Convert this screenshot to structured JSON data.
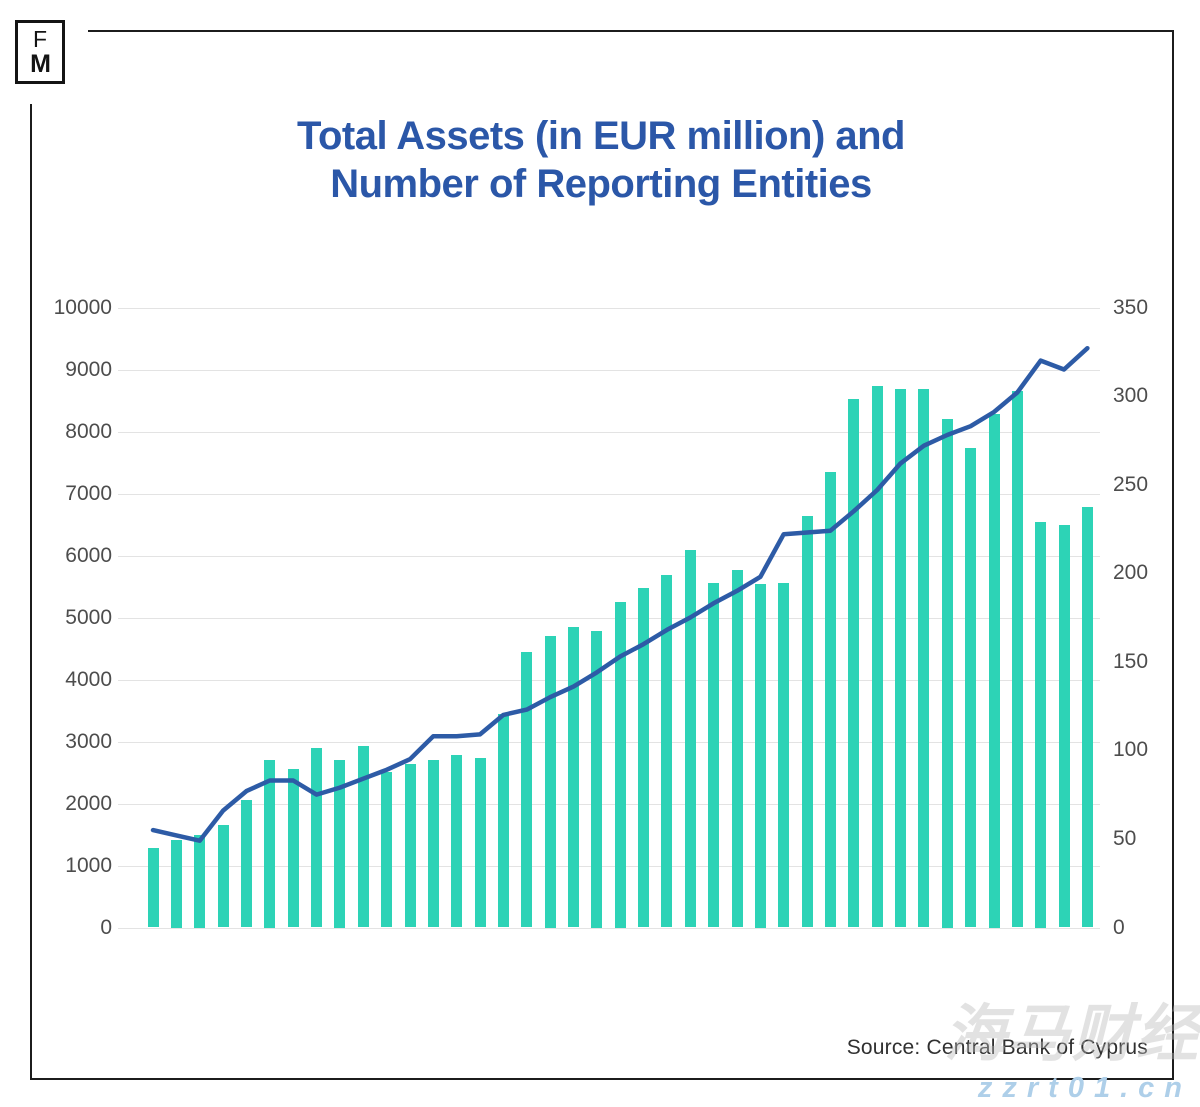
{
  "logo": {
    "top": "F",
    "bottom": "M"
  },
  "title": {
    "line1": "Total Assets (in EUR million) and",
    "line2": "Number of Reporting Entities"
  },
  "source": "Source: Central Bank of Cyprus",
  "watermark": {
    "text": "海马财经",
    "url": "zzrt01.cn"
  },
  "colors": {
    "bar": "#2dd3b6",
    "line": "#2d5ba6",
    "title": "#2b57a8",
    "axis_text": "#4d4d4d",
    "gridline": "#e3e3e3",
    "border": "#1c1c1c",
    "watermark_url": "#aecfe9"
  },
  "chart_data": {
    "type": "combo",
    "title": "Total Assets (in EUR million) and Number of Reporting Entities",
    "x_tick_labels": [],
    "legend": "none",
    "grid": "horizontal, left axis steps only",
    "left_axis": {
      "min": 0,
      "max": 10000,
      "step": 1000
    },
    "right_axis": {
      "min": 0,
      "max": 350,
      "step": 50
    },
    "series": [
      {
        "name": "Total Assets (EUR million)",
        "type": "bar",
        "axis": "left",
        "values": [
          1280,
          1420,
          1500,
          1650,
          2060,
          2710,
          2550,
          2900,
          2710,
          2930,
          2510,
          2640,
          2700,
          2780,
          2740,
          3450,
          4440,
          4710,
          4850,
          4790,
          5250,
          5480,
          5690,
          6090,
          5560,
          5760,
          5540,
          5560,
          6630,
          7350,
          8520,
          8730,
          8680,
          8690,
          8210,
          7740,
          8290,
          8660,
          6540,
          6490,
          6780
        ]
      },
      {
        "name": "Number of Reporting Entities",
        "type": "line",
        "axis": "right",
        "values": [
          55,
          52,
          49,
          66,
          77,
          83,
          83,
          75,
          79,
          84,
          89,
          95,
          108,
          108,
          109,
          120,
          123,
          130,
          136,
          144,
          153,
          160,
          168,
          175,
          183,
          190,
          198,
          222,
          223,
          224,
          235,
          247,
          262,
          272,
          278,
          283,
          291,
          302,
          320,
          315,
          327
        ]
      }
    ]
  }
}
